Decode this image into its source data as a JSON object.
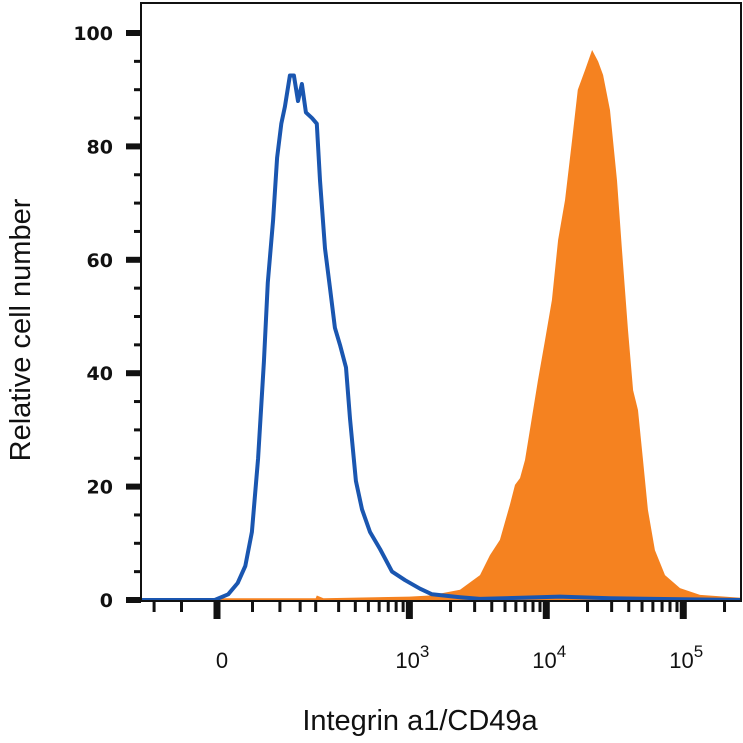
{
  "chart_data": {
    "type": "area",
    "title": "",
    "xlabel": "Integrin a1/CD49a",
    "ylabel": "Relative cell number",
    "x_scale": "biexponential",
    "xlim": [
      -130,
      262000
    ],
    "ylim": [
      0,
      105
    ],
    "y_ticks": [
      0,
      20,
      40,
      60,
      80,
      100
    ],
    "y_tick_labels": [
      "0",
      "20",
      "40",
      "60",
      "80",
      "100"
    ],
    "x_ticks": [
      0,
      1000,
      10000,
      100000
    ],
    "x_tick_labels": [
      {
        "base": "0",
        "exp": ""
      },
      {
        "base": "10",
        "exp": "3"
      },
      {
        "base": "10",
        "exp": "4"
      },
      {
        "base": "10",
        "exp": "5"
      }
    ],
    "grid": false,
    "legend": "none",
    "series": [
      {
        "style": "filled",
        "color": "#f58220",
        "x": [
          -130,
          100,
          200,
          204,
          230,
          1000,
          1415,
          2346,
          3280,
          3880,
          4590,
          5430,
          5910,
          6430,
          6990,
          7600,
          8700,
          9800,
          11000,
          12200,
          13700,
          15400,
          17000,
          19200,
          21600,
          23900,
          26000,
          29200,
          32800,
          35700,
          39500,
          43000,
          46700,
          50800,
          55200,
          62100,
          73500,
          94700,
          132500,
          262000
        ],
        "y": [
          0.3,
          0.3,
          0.3,
          0.8,
          0.3,
          0.6,
          0.8,
          1.8,
          4.4,
          7.9,
          10.6,
          16.8,
          20.3,
          21.5,
          24.7,
          30,
          38.8,
          45.9,
          52.9,
          63.5,
          70.5,
          81,
          90,
          93.5,
          97,
          95,
          92.6,
          86.4,
          74,
          61.7,
          47.6,
          37,
          33.5,
          24.7,
          15.9,
          8.8,
          4.4,
          2.1,
          0.9,
          0.4
        ]
      },
      {
        "style": "line",
        "color": "#1a56b0",
        "x": [
          -130,
          -3,
          15,
          28,
          39,
          49,
          59,
          69,
          76,
          86,
          94,
          103,
          111,
          123,
          133,
          144,
          155,
          167,
          187,
          204,
          216,
          236,
          258,
          281,
          307,
          341,
          365,
          404,
          448,
          514,
          609,
          746,
          930,
          1197,
          1463,
          2346,
          3280,
          12570,
          29150,
          262000
        ],
        "y": [
          0,
          0,
          1,
          3,
          6,
          12,
          25,
          42,
          56,
          67,
          78,
          84,
          87,
          92.5,
          92.5,
          88,
          91,
          86,
          85,
          84,
          74,
          62,
          55,
          48,
          45,
          41,
          32,
          21,
          16,
          12,
          9,
          5,
          3.5,
          2,
          1,
          0.5,
          0.2,
          0.6,
          0.3,
          0
        ]
      }
    ]
  }
}
